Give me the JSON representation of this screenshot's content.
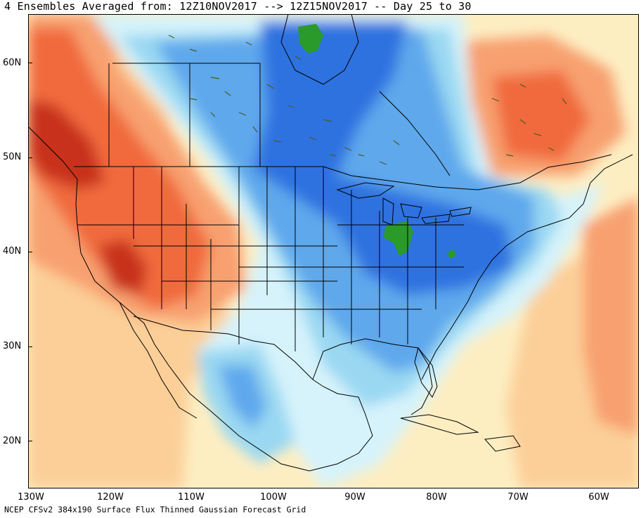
{
  "title": "4 Ensembles Averaged from: 12Z10NOV2017 --> 12Z15NOV2017 -- Day 25 to 30",
  "footer": "NCEP CFSv2 384x190 Surface Flux Thinned Gaussian Forecast Grid",
  "lat_labels": [
    "60N",
    "50N",
    "40N",
    "30N",
    "20N"
  ],
  "lon_labels": [
    "130W",
    "120W",
    "110W",
    "100W",
    "90W",
    "80W",
    "70W",
    "60W"
  ],
  "colors": {
    "warm_strong": "#c8321e",
    "warm_mid": "#f06a3c",
    "warm_light": "#f8a070",
    "warm_pale": "#fccf98",
    "warm_faint": "#fdeec2",
    "cold_faint": "#d6f3fb",
    "cold_light": "#9ad8f2",
    "cold_mid": "#5ea8ec",
    "cold_strong": "#2f72e0",
    "cold_deep": "#2a9a2a",
    "border": "#000000",
    "lakes": "#4b5a1e"
  }
}
